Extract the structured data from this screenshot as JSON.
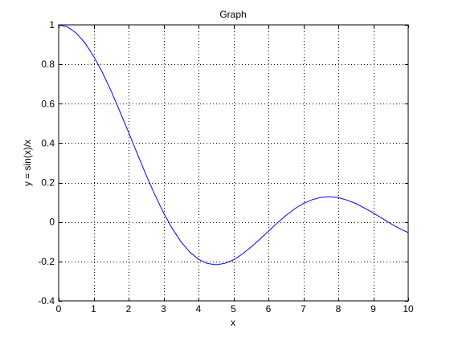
{
  "chart_data": {
    "type": "line",
    "title": "Graph",
    "xlabel": "x",
    "ylabel": "y = sin(x)/x",
    "xlim": [
      0,
      10
    ],
    "ylim": [
      -0.4,
      1
    ],
    "grid": true,
    "grid_style": "dotted",
    "line_color": "#0000ff",
    "xticks": [
      0,
      1,
      2,
      3,
      4,
      5,
      6,
      7,
      8,
      9,
      10
    ],
    "xtick_labels": [
      "0",
      "1",
      "2",
      "3",
      "4",
      "5",
      "6",
      "7",
      "8",
      "9",
      "10"
    ],
    "yticks": [
      -0.4,
      -0.2,
      0,
      0.2,
      0.4,
      0.6,
      0.8,
      1
    ],
    "ytick_labels": [
      "-0.4",
      "-0.2",
      "0",
      "0.2",
      "0.4",
      "0.6",
      "0.8",
      "1"
    ],
    "series": [
      {
        "x": [
          0,
          0.25,
          0.5,
          0.75,
          1,
          1.25,
          1.5,
          1.75,
          2,
          2.25,
          2.5,
          2.75,
          3,
          3.25,
          3.5,
          3.75,
          4,
          4.25,
          4.5,
          4.75,
          5,
          5.25,
          5.5,
          5.75,
          6,
          6.25,
          6.5,
          6.75,
          7,
          7.25,
          7.5,
          7.75,
          8,
          8.25,
          8.5,
          8.75,
          9,
          9.25,
          9.5,
          9.75,
          10
        ],
        "y": [
          1,
          0.99,
          0.959,
          0.909,
          0.841,
          0.759,
          0.665,
          0.561,
          0.455,
          0.346,
          0.239,
          0.139,
          0.047,
          -0.033,
          -0.1,
          -0.152,
          -0.189,
          -0.21,
          -0.217,
          -0.21,
          -0.192,
          -0.163,
          -0.128,
          -0.088,
          -0.047,
          -0.005,
          0.033,
          0.067,
          0.094,
          0.113,
          0.125,
          0.128,
          0.124,
          0.111,
          0.094,
          0.071,
          0.046,
          0.019,
          -0.008,
          -0.033,
          -0.054
        ]
      }
    ]
  }
}
